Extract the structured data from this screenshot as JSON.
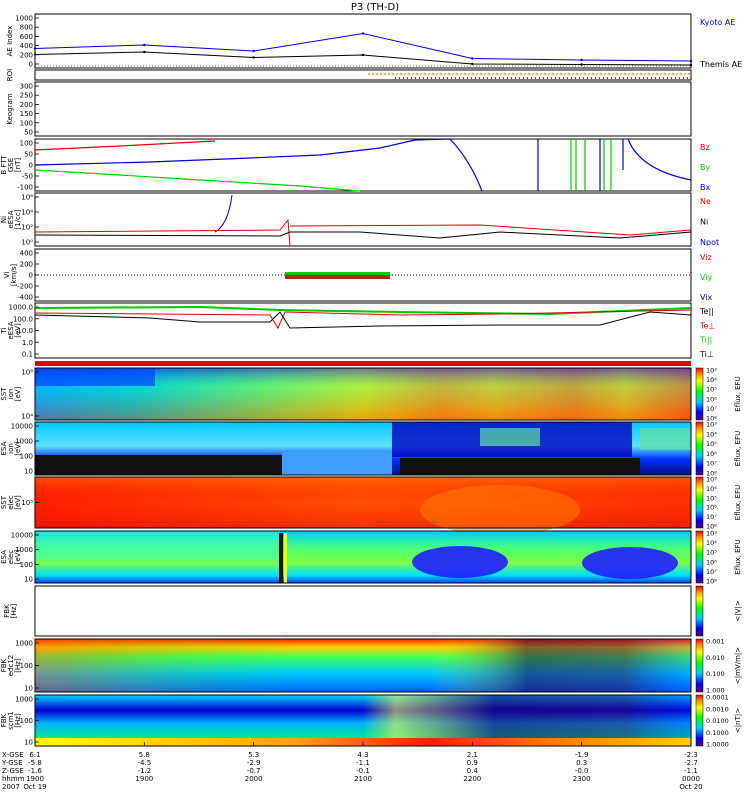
{
  "title": "P3 (TH-D)",
  "colors": {
    "blue": "#0000c8",
    "red": "#e00000",
    "green": "#00c800",
    "black": "#000000",
    "orange": "#ff8c00"
  },
  "panels": [
    {
      "ylabels": [
        "AE Index"
      ],
      "ticks": [
        "1000",
        "800",
        "600",
        "400",
        "200",
        "0"
      ],
      "legend": [
        {
          "text": "Kyoto AE",
          "color": "#0000c8"
        },
        {
          "text": "Themis AE",
          "color": "#000000"
        }
      ]
    },
    {
      "ylabels": [
        "ROI"
      ],
      "ticks": [],
      "legend": []
    },
    {
      "ylabels": [
        "Keogram"
      ],
      "ticks": [
        "300",
        "250",
        "200",
        "150",
        "100",
        "50"
      ],
      "legend": []
    },
    {
      "ylabels": [
        "B FTT",
        "GSE",
        "[nT]"
      ],
      "ticks": [
        "100",
        "50",
        "0",
        "-50",
        "-100"
      ],
      "legend": [
        {
          "text": "Bz",
          "color": "#e00000"
        },
        {
          "text": "By",
          "color": "#00c800"
        },
        {
          "text": "Bx",
          "color": "#0000c8"
        }
      ]
    },
    {
      "ylabels": [
        "Ni",
        "eESA",
        "[1/cc]"
      ],
      "ticks": [
        "10⁶",
        "10⁴",
        "10²",
        "10⁰"
      ],
      "legend": [
        {
          "text": "Ne",
          "color": "#e00000"
        },
        {
          "text": "Ni",
          "color": "#000000"
        },
        {
          "text": "Npot",
          "color": "#0000c8"
        }
      ]
    },
    {
      "ylabels": [
        "Vi",
        "[km/s]"
      ],
      "ticks": [
        "400",
        "200",
        "0",
        "-200",
        "-400"
      ],
      "legend": [
        {
          "text": "Viz",
          "color": "#e00000"
        },
        {
          "text": "Viy",
          "color": "#00c800"
        },
        {
          "text": "Vix",
          "color": "#0000c8"
        }
      ]
    },
    {
      "ylabels": [
        "Ti",
        "eESA",
        "[eV]"
      ],
      "ticks": [
        "1000.0",
        "100.0",
        "10.0",
        "1.0",
        "0.1"
      ],
      "legend": [
        {
          "text": "Te||",
          "color": "#000000"
        },
        {
          "text": "Te⊥",
          "color": "#e00000"
        },
        {
          "text": "Ti||",
          "color": "#00c800"
        },
        {
          "text": "Ti⊥",
          "color": "#0000c8"
        }
      ]
    },
    {
      "ylabels": [
        "SST",
        "ion",
        "[eV]"
      ],
      "ticks": [
        "10⁵",
        "10⁴"
      ],
      "legend": []
    },
    {
      "ylabels": [
        "ESA",
        "ion",
        "[eV]"
      ],
      "ticks": [
        "10000",
        "1000",
        "100",
        "10"
      ],
      "legend": []
    },
    {
      "ylabels": [
        "SST",
        "elec",
        "[eV]"
      ],
      "ticks": [
        "10⁵"
      ],
      "legend": []
    },
    {
      "ylabels": [
        "ESA",
        "elec",
        "[eV]"
      ],
      "ticks": [
        "10000",
        "1000",
        "100",
        "10"
      ],
      "legend": []
    },
    {
      "ylabels": [
        "FBK",
        "[Hz]"
      ],
      "ticks": [],
      "legend": []
    },
    {
      "ylabels": [
        "FBK",
        "edc12",
        "[Hz]"
      ],
      "ticks": [
        "1000",
        "100",
        "10"
      ],
      "legend": []
    },
    {
      "ylabels": [
        "FBK",
        "scm1",
        "[Hz]"
      ],
      "ticks": [
        "1000",
        "100",
        "10"
      ],
      "legend": []
    }
  ],
  "colorbars": [
    {
      "labels": [
        "10⁸",
        "10⁷",
        "10⁶",
        "10⁵",
        "10⁴",
        "10³"
      ],
      "title": "Eflux, EFU"
    },
    {
      "labels": [
        "10⁸",
        "10⁷",
        "10⁶",
        "10⁵",
        "10⁴",
        "10³"
      ],
      "title": "Eflux, EFU"
    },
    {
      "labels": [
        "10⁸",
        "10⁷",
        "10⁶",
        "10⁵",
        "10⁴",
        "10³"
      ],
      "title": "Eflux, EFU"
    },
    {
      "labels": [
        "10⁸",
        "10⁷",
        "10⁶",
        "10⁵",
        "10⁴",
        "10³"
      ],
      "title": "Eflux, EFU"
    },
    {
      "labels": [],
      "title": "<|V|>"
    },
    {
      "labels": [
        "1.000",
        "0.100",
        "0.010",
        "0.001"
      ],
      "title": "<|mV/m|>"
    },
    {
      "labels": [
        "1.0000",
        "0.1000",
        "0.0100",
        "0.0010",
        "0.0001"
      ],
      "title": "<|nT|>"
    }
  ],
  "x_axis": {
    "row_labels": [
      "X-GSE",
      "Y-GSE",
      "Z-GSE",
      "hhmm",
      "2007"
    ],
    "columns": [
      {
        "vals": [
          "6.1",
          "-5.8",
          "-1.6",
          "1900",
          "Oct 19"
        ]
      },
      {
        "vals": [
          "5.8",
          "-4.5",
          "-1.2",
          "1900",
          ""
        ]
      },
      {
        "vals": [
          "5.3",
          "-2.9",
          "-0.7",
          "2000",
          ""
        ]
      },
      {
        "vals": [
          "4.3",
          "-1.1",
          "-0.1",
          "2100",
          ""
        ]
      },
      {
        "vals": [
          "2.1",
          "0.9",
          "0.4",
          "2200",
          ""
        ]
      },
      {
        "vals": [
          "-1.9",
          "0.3",
          "-0.0",
          "2300",
          ""
        ]
      },
      {
        "vals": [
          "-2.3",
          "-2.7",
          "-1.1",
          "0000",
          "Oct 20"
        ]
      }
    ]
  },
  "chart_data": {
    "type": "line",
    "title": "P3 (TH-D)",
    "x": [
      "1900",
      "1900",
      "2000",
      "2100",
      "2200",
      "2300",
      "0000"
    ],
    "series": [
      {
        "name": "Kyoto AE",
        "values": [
          350,
          420,
          300,
          650,
          150,
          120,
          100
        ]
      },
      {
        "name": "Themis AE",
        "values": [
          230,
          280,
          170,
          220,
          40,
          30,
          20
        ]
      }
    ],
    "ylabel": "AE Index",
    "ylim": [
      0,
      1000
    ]
  }
}
